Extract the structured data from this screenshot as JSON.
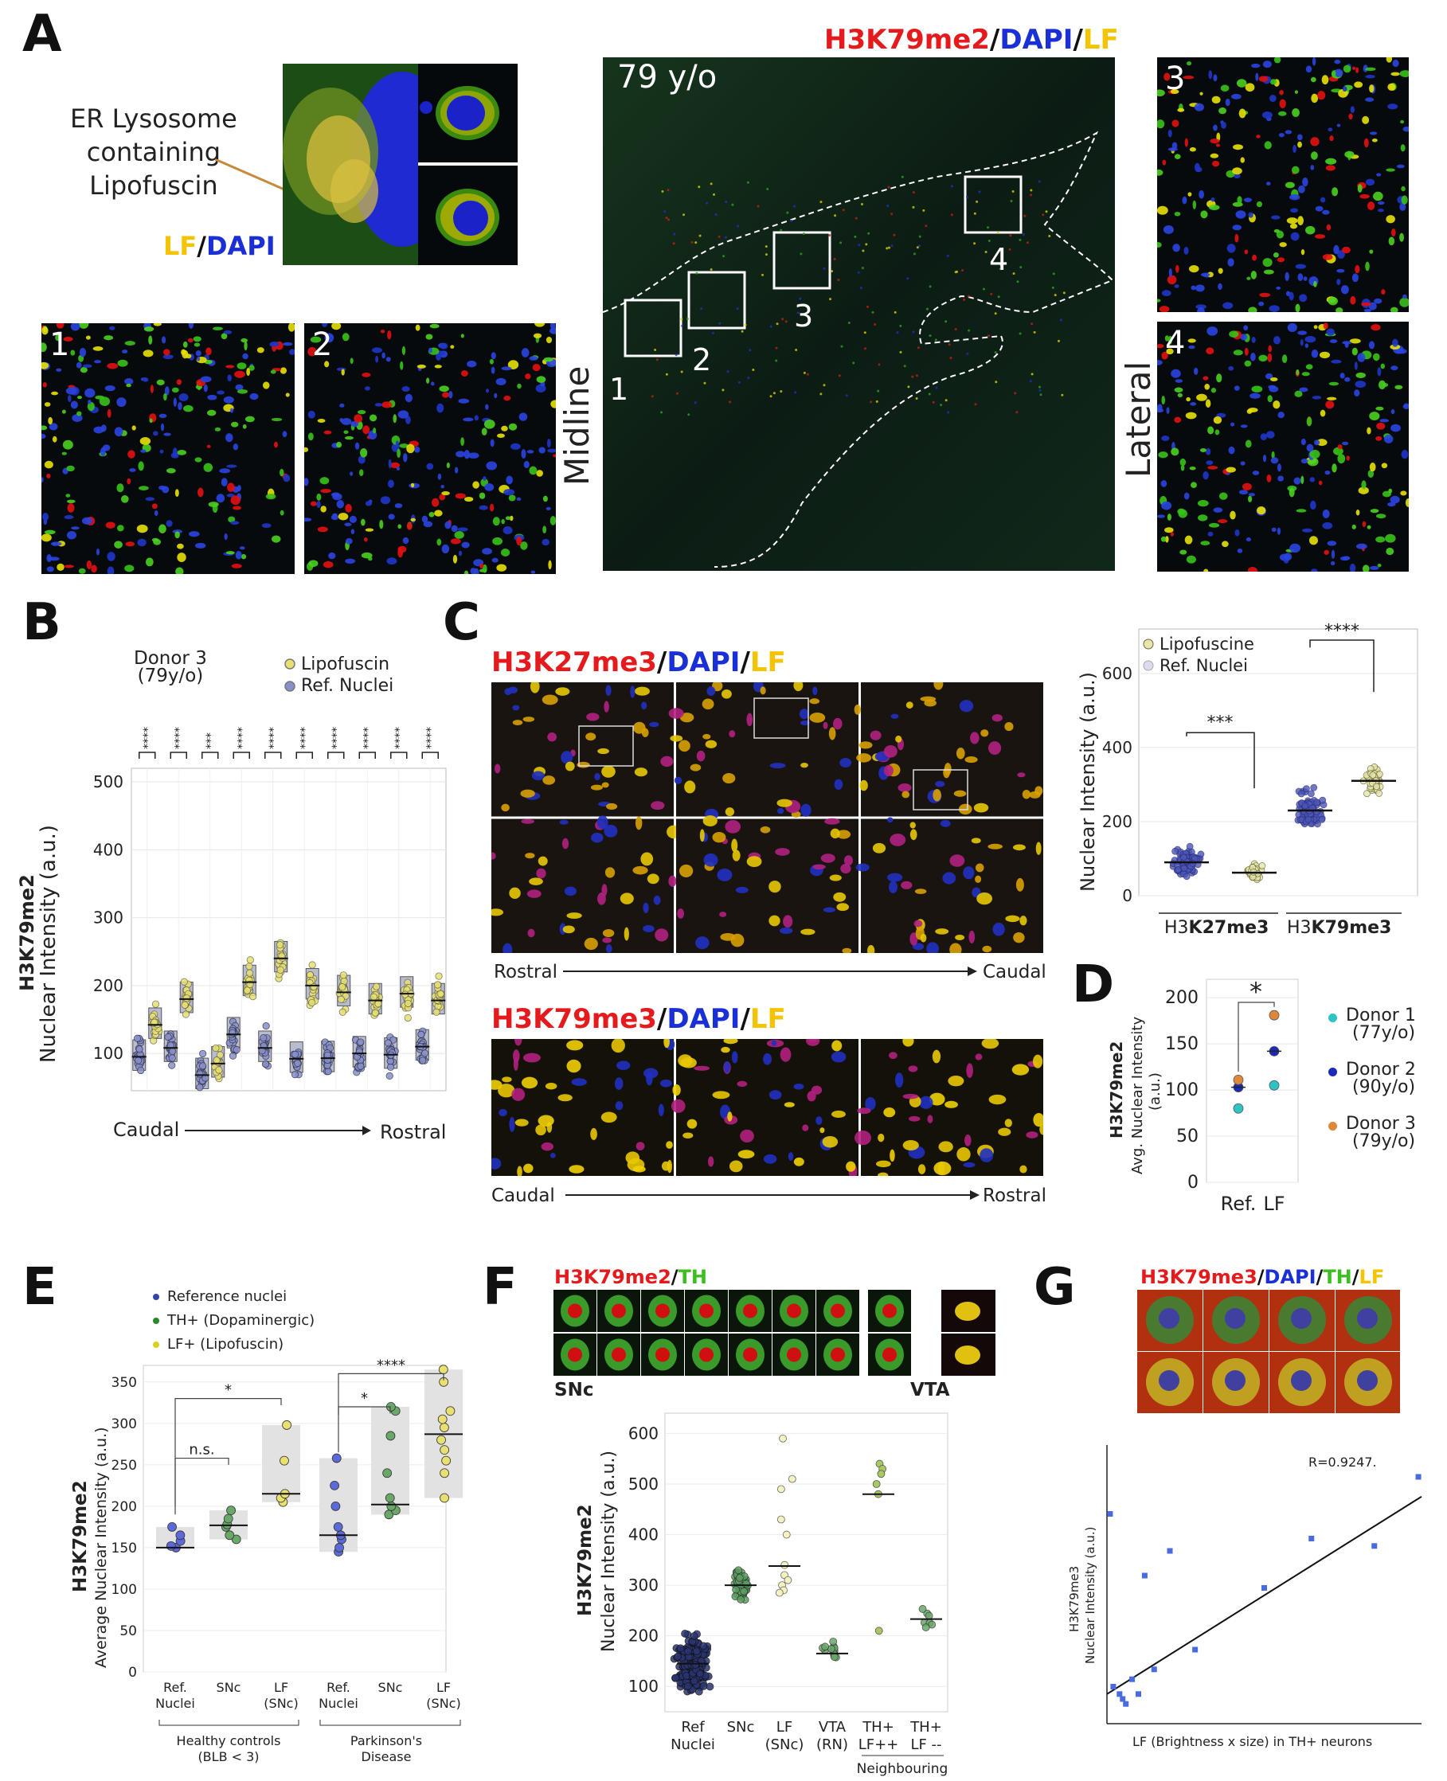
{
  "panels": {
    "A": "A",
    "B": "B",
    "C": "C",
    "D": "D",
    "E": "E",
    "F": "F",
    "G": "G"
  },
  "panel_a": {
    "title_parts": [
      "H3K79me2",
      "/",
      "DAPI",
      "/",
      "LF"
    ],
    "er_label": [
      "ER Lysosome",
      "containing",
      "Lipofuscin"
    ],
    "lf_dapi_parts": [
      "LF",
      "/",
      "DAPI"
    ],
    "age": "79 y/o",
    "midline": "Midline",
    "lateral": "Lateral",
    "box_numbers": [
      "1",
      "2",
      "3",
      "4"
    ],
    "colors": {
      "red": "#e41a1c",
      "blue": "#1a2fd6",
      "yellow": "#f5c400",
      "green": "#3bbf1f"
    }
  },
  "panel_b": {
    "donor": [
      "Donor 3",
      "(79y/o)"
    ],
    "legend": [
      "Lipofuscin",
      "Ref. Nuclei"
    ],
    "ylabel_bold": "H3K79me2",
    "ylabel": "Nuclear Intensity (a.u.)",
    "xstart": "Caudal",
    "xend": "Rostral",
    "yticks": [
      "100",
      "200",
      "300",
      "400",
      "500"
    ],
    "signif": [
      "****",
      "****",
      "***",
      "****",
      "****",
      "****",
      "****",
      "****",
      "****",
      "****"
    ]
  },
  "panel_c": {
    "title1_parts": [
      "H3K27me3",
      "/",
      "DAPI",
      "/",
      "LF"
    ],
    "title2_parts": [
      "H3K79me3",
      "/",
      "DAPI",
      "/",
      "LF"
    ],
    "dir1": [
      "Rostral",
      "Caudal"
    ],
    "dir2": [
      "Caudal",
      "Rostral"
    ],
    "legend": [
      "Lipofuscine",
      "Ref. Nuclei"
    ],
    "ylabel": "Nuclear Intensity (a.u.)",
    "yticks": [
      "0",
      "200",
      "400",
      "600"
    ],
    "groups": [
      [
        "H3",
        "K27me3"
      ],
      [
        "H3",
        "K79me3"
      ]
    ],
    "signif": [
      "***",
      "****"
    ]
  },
  "panel_d": {
    "ylabel_bold": "H3K79me2",
    "ylabel1": "Avg. Nuclear Intensity",
    "ylabel2": "(a.u.)",
    "yticks": [
      "0",
      "50",
      "100",
      "150",
      "200"
    ],
    "xticks": [
      "Ref.",
      "LF"
    ],
    "signif": "*",
    "donors": [
      {
        "name": "Donor 1",
        "age": "(77y/o)",
        "color": "#2ec4c4"
      },
      {
        "name": "Donor 2",
        "age": "(90y/o)",
        "color": "#1b2bb8"
      },
      {
        "name": "Donor 3",
        "age": "(79y/o)",
        "color": "#e0883a"
      }
    ]
  },
  "panel_e": {
    "legend": [
      "Reference nuclei",
      "TH+ (Dopaminergic)",
      "LF+ (Lipofuscin)"
    ],
    "legend_colors": [
      "#3344aa",
      "#2a8a2a",
      "#d8d020"
    ],
    "ylabel_bold": "H3K79me2",
    "ylabel": "Average Nuclear Intensity  (a.u.)",
    "yticks": [
      "0",
      "50",
      "100",
      "150",
      "200",
      "250",
      "300",
      "350"
    ],
    "xticks": [
      [
        "Ref.",
        "Nuclei"
      ],
      [
        "SNc",
        ""
      ],
      [
        "LF",
        "(SNc)"
      ],
      [
        "Ref.",
        "Nuclei"
      ],
      [
        "SNc",
        ""
      ],
      [
        "LF",
        "(SNc)"
      ]
    ],
    "group1": [
      "Healthy controls",
      "(BLB < 3)"
    ],
    "group2": [
      "Parkinson's",
      "Disease"
    ],
    "signif": [
      "*",
      "n.s.",
      "*",
      "****"
    ]
  },
  "panel_f": {
    "title_parts": [
      "H3K79me2",
      "/",
      "TH"
    ],
    "snc": "SNc",
    "vta": "VTA",
    "ylabel_bold": "H3K79me2",
    "ylabel": "Nuclear Intensity (a.u.)",
    "yticks": [
      "100",
      "200",
      "300",
      "400",
      "500",
      "600"
    ],
    "xticks": [
      [
        "Ref",
        "Nuclei"
      ],
      [
        "SNc",
        ""
      ],
      [
        "LF",
        "(SNc)"
      ],
      [
        "VTA",
        "(RN)"
      ],
      [
        "TH+",
        "LF++"
      ],
      [
        "TH+",
        "LF --"
      ]
    ],
    "neighbouring": "Neighbouring"
  },
  "panel_g": {
    "title_parts": [
      "H3K79me3",
      "/",
      "DAPI",
      "/",
      "TH",
      "/",
      "LF"
    ],
    "r": "R=0.9247.",
    "ylabel1": "H3K79me3",
    "ylabel2": "Nuclear Intensity  (a.u.)",
    "xlabel": "LF (Brightness x size) in TH+ neurons"
  },
  "chart_data": [
    {
      "type": "scatter",
      "panel": "B",
      "title": "Donor 3 (79y/o)",
      "ylabel": "H3K79me2 Nuclear Intensity (a.u.)",
      "ylim": [
        45,
        520
      ],
      "x_direction": [
        "Caudal",
        "Rostral"
      ],
      "series": [
        {
          "name": "Ref. Nuclei",
          "medians": [
            95,
            108,
            68,
            128,
            108,
            92,
            93,
            100,
            98,
            110
          ]
        },
        {
          "name": "Lipofuscin",
          "medians": [
            142,
            180,
            85,
            205,
            240,
            200,
            190,
            178,
            188,
            178
          ]
        }
      ],
      "significance": [
        "****",
        "****",
        "***",
        "****",
        "****",
        "****",
        "****",
        "****",
        "****",
        "****"
      ]
    },
    {
      "type": "scatter",
      "panel": "C",
      "ylabel": "Nuclear Intensity (a.u.)",
      "ylim": [
        0,
        720
      ],
      "categories": [
        "H3K27me3",
        "H3K79me3"
      ],
      "series": [
        {
          "name": "Ref. Nuclei",
          "medians": [
            90,
            230
          ]
        },
        {
          "name": "Lipofuscine",
          "medians": [
            62,
            310
          ]
        }
      ],
      "significance": [
        "***",
        "****"
      ]
    },
    {
      "type": "scatter",
      "panel": "D",
      "ylabel": "H3K79me2 Avg. Nuclear Intensity (a.u.)",
      "ylim": [
        0,
        220
      ],
      "categories": [
        "Ref.",
        "LF"
      ],
      "series": [
        {
          "name": "Donor 1 (77y/o)",
          "values": [
            80,
            105
          ]
        },
        {
          "name": "Donor 2 (90y/o)",
          "values": [
            103,
            142
          ]
        },
        {
          "name": "Donor 3 (79y/o)",
          "values": [
            111,
            181
          ]
        }
      ],
      "means": [
        103,
        142
      ],
      "significance": "*"
    },
    {
      "type": "scatter",
      "panel": "E",
      "ylabel": "H3K79me2 Average Nuclear Intensity (a.u.)",
      "ylim": [
        0,
        370
      ],
      "categories": [
        "Ref. Nuclei",
        "SNc",
        "LF (SNc)",
        "Ref. Nuclei",
        "SNc",
        "LF (SNc)"
      ],
      "groups": [
        "Healthy controls (BLB < 3)",
        "Parkinson's Disease"
      ],
      "points": [
        [
          150,
          152,
          158,
          165,
          175
        ],
        [
          160,
          165,
          175,
          178,
          185,
          195
        ],
        [
          205,
          210,
          215,
          255,
          298
        ],
        [
          145,
          150,
          160,
          165,
          175,
          200,
          225,
          258
        ],
        [
          190,
          195,
          200,
          210,
          240,
          285,
          315,
          320
        ],
        [
          210,
          240,
          255,
          268,
          280,
          295,
          305,
          315,
          350,
          365
        ]
      ],
      "medians": [
        150,
        177,
        215,
        165,
        202,
        287
      ],
      "significance": [
        {
          "pair": "Ref-LF healthy",
          "label": "*"
        },
        {
          "pair": "Ref-SNc healthy",
          "label": "n.s."
        },
        {
          "pair": "Ref-SNc PD",
          "label": "*"
        },
        {
          "pair": "Ref-LF PD",
          "label": "****"
        }
      ]
    },
    {
      "type": "scatter",
      "panel": "F",
      "ylabel": "H3K79me2 Nuclear Intensity (a.u.)",
      "ylim": [
        50,
        640
      ],
      "categories": [
        "Ref Nuclei",
        "SNc",
        "LF (SNc)",
        "VTA (RN)",
        "TH+ LF++",
        "TH+ LF --"
      ],
      "medians": [
        145,
        300,
        338,
        165,
        480,
        233
      ],
      "tf_points": [
        540,
        530,
        520,
        500,
        480,
        210
      ],
      "lf_points": [
        590,
        510,
        490,
        430,
        400,
        340,
        320,
        310,
        300,
        290,
        285
      ]
    },
    {
      "type": "scatter",
      "panel": "G",
      "xlabel": "LF (Brightness x size) in TH+ neurons",
      "ylabel": "H3K79me3 Nuclear Intensity (a.u.)",
      "annotation": "R=0.9247.",
      "points": [
        [
          0.01,
          0.85
        ],
        [
          0.02,
          0.15
        ],
        [
          0.04,
          0.12
        ],
        [
          0.05,
          0.1
        ],
        [
          0.06,
          0.08
        ],
        [
          0.08,
          0.18
        ],
        [
          0.1,
          0.12
        ],
        [
          0.15,
          0.22
        ],
        [
          0.12,
          0.6
        ],
        [
          0.2,
          0.7
        ],
        [
          0.28,
          0.3
        ],
        [
          0.5,
          0.55
        ],
        [
          0.65,
          0.75
        ],
        [
          0.85,
          0.72
        ],
        [
          0.99,
          1.0
        ]
      ],
      "fit": [
        [
          0,
          0.12
        ],
        [
          1,
          0.92
        ]
      ]
    }
  ]
}
